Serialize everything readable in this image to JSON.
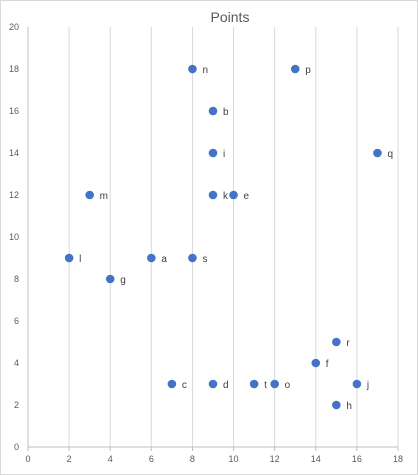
{
  "chart_data": {
    "type": "scatter",
    "title": "Points",
    "xlabel": "",
    "ylabel": "",
    "xlim": [
      0,
      18
    ],
    "ylim": [
      0,
      20
    ],
    "x_ticks": [
      0,
      2,
      4,
      6,
      8,
      10,
      12,
      14,
      16,
      18
    ],
    "y_ticks": [
      0,
      2,
      4,
      6,
      8,
      10,
      12,
      14,
      16,
      18,
      20
    ],
    "grid": "vertical-major",
    "legend": "none",
    "marker_color": "#4472c4",
    "points": [
      {
        "label": "n",
        "x": 8,
        "y": 18
      },
      {
        "label": "p",
        "x": 13,
        "y": 18
      },
      {
        "label": "b",
        "x": 9,
        "y": 16
      },
      {
        "label": "i",
        "x": 9,
        "y": 14
      },
      {
        "label": "q",
        "x": 17,
        "y": 14
      },
      {
        "label": "m",
        "x": 3,
        "y": 12
      },
      {
        "label": "k",
        "x": 9,
        "y": 12
      },
      {
        "label": "e",
        "x": 10,
        "y": 12
      },
      {
        "label": "l",
        "x": 2,
        "y": 9
      },
      {
        "label": "a",
        "x": 6,
        "y": 9
      },
      {
        "label": "s",
        "x": 8,
        "y": 9
      },
      {
        "label": "g",
        "x": 4,
        "y": 8
      },
      {
        "label": "r",
        "x": 15,
        "y": 5
      },
      {
        "label": "f",
        "x": 14,
        "y": 4
      },
      {
        "label": "c",
        "x": 7,
        "y": 3
      },
      {
        "label": "d",
        "x": 9,
        "y": 3
      },
      {
        "label": "t",
        "x": 11,
        "y": 3
      },
      {
        "label": "o",
        "x": 12,
        "y": 3
      },
      {
        "label": "j",
        "x": 16,
        "y": 3
      },
      {
        "label": "h",
        "x": 15,
        "y": 2
      }
    ]
  }
}
